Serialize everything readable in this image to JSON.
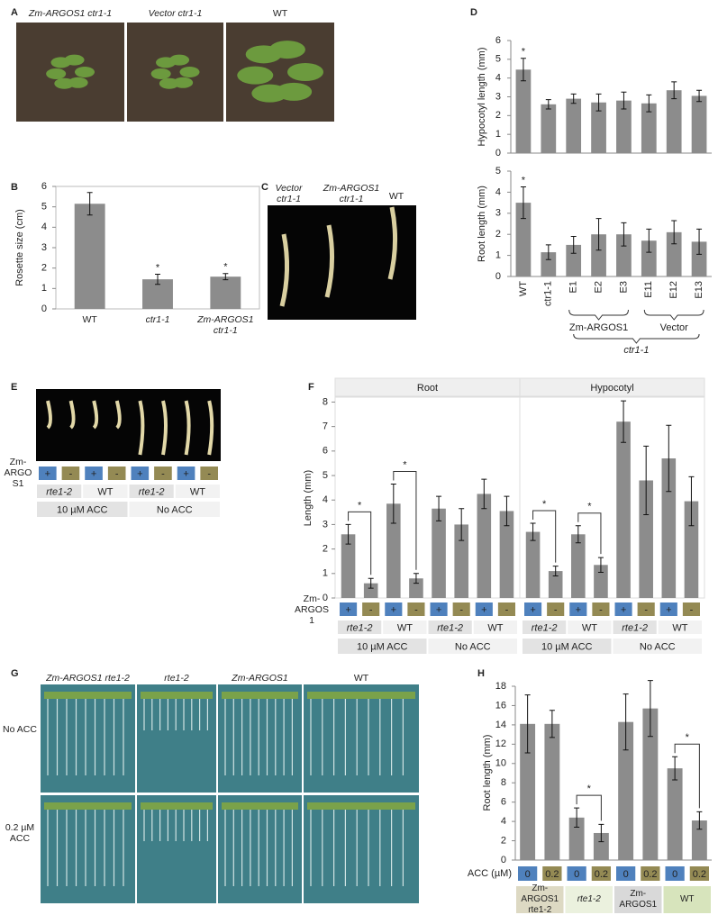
{
  "panels": {
    "letters": [
      "A",
      "B",
      "C",
      "D",
      "E",
      "F",
      "G",
      "H"
    ],
    "A": {
      "labels": [
        "Zm-ARGOS1 ctr1-1",
        "Vector ctr1-1",
        "WT"
      ]
    },
    "C": {
      "labels": [
        "Vector ctr1-1",
        "Zm-ARGOS1 ctr1-1",
        "WT"
      ]
    },
    "E": {
      "row_label": "Zm-ARGOS1",
      "argos": [
        "+",
        "-",
        "+",
        "-",
        "+",
        "-",
        "+",
        "-"
      ],
      "genotypes": [
        "rte1-2",
        "WT",
        "rte1-2",
        "WT"
      ],
      "treatments": [
        "10 µM ACC",
        "No ACC"
      ]
    },
    "G": {
      "columns": [
        "Zm-ARGOS1 rte1-2",
        "rte1-2",
        "Zm-ARGOS1",
        "WT"
      ],
      "rows": [
        "No ACC",
        "0.2 µM ACC"
      ]
    }
  },
  "chart_data": [
    {
      "type": "bar",
      "ylabel": "Rosette size (cm)",
      "categories": [
        "WT",
        "ctr1-1",
        "Zm-ARGOS1 ctr1-1"
      ],
      "values": [
        5.15,
        1.45,
        1.58
      ],
      "errors": [
        0.55,
        0.25,
        0.15
      ],
      "significance": [
        null,
        "*",
        "*"
      ],
      "ylim": [
        0,
        6
      ],
      "yticks": [
        0,
        1,
        2,
        3,
        4,
        5,
        6
      ],
      "color": "#8c8c8c",
      "grid": false
    },
    {
      "type": "bar",
      "ylabel": "Hypocotyl length (mm)",
      "values": [
        4.45,
        2.6,
        2.9,
        2.7,
        2.8,
        2.65,
        3.35,
        3.05
      ],
      "errors": [
        0.6,
        0.25,
        0.25,
        0.45,
        0.45,
        0.45,
        0.45,
        0.3
      ],
      "significance": [
        "*",
        null,
        null,
        null,
        null,
        null,
        null,
        null
      ],
      "ylim": [
        0,
        6
      ],
      "yticks": [
        0,
        1,
        2,
        3,
        4,
        5,
        6
      ],
      "color": "#8c8c8c",
      "grid": false
    },
    {
      "type": "bar",
      "ylabel": "Root length (mm)",
      "categories": [
        "WT",
        "ctr1-1",
        "E1",
        "E2",
        "E3",
        "E11",
        "E12",
        "E13"
      ],
      "values": [
        3.5,
        1.15,
        1.5,
        2.0,
        2.0,
        1.7,
        2.1,
        1.65
      ],
      "errors": [
        0.75,
        0.35,
        0.4,
        0.75,
        0.55,
        0.55,
        0.55,
        0.6
      ],
      "significance": [
        "*",
        null,
        null,
        null,
        null,
        null,
        null,
        null
      ],
      "groups": [
        "Zm-ARGOS1",
        "Vector"
      ],
      "group_label": "ctr1-1",
      "ylim": [
        0,
        5
      ],
      "yticks": [
        0,
        1,
        2,
        3,
        4,
        5
      ],
      "color": "#8c8c8c",
      "grid": false
    },
    {
      "type": "bar",
      "ylabel": "Length (mm)",
      "facets": [
        {
          "title": "Root",
          "values": [
            2.6,
            0.6,
            3.85,
            0.8,
            3.65,
            3.0,
            4.25,
            3.55
          ],
          "errors": [
            0.4,
            0.2,
            0.8,
            0.2,
            0.5,
            0.65,
            0.6,
            0.6
          ],
          "comparisons": [
            "*",
            "*"
          ]
        },
        {
          "title": "Hypocotyl",
          "values": [
            2.7,
            1.1,
            2.6,
            1.35,
            7.2,
            4.8,
            5.7,
            3.95
          ],
          "errors": [
            0.35,
            0.2,
            0.35,
            0.3,
            0.85,
            1.4,
            1.35,
            1.0
          ],
          "comparisons": [
            "*",
            "*"
          ]
        }
      ],
      "row_label": "Zm-ARGOS1",
      "argos": [
        "+",
        "-",
        "+",
        "-",
        "+",
        "-",
        "+",
        "-"
      ],
      "genotypes": [
        "rte1-2",
        "WT",
        "rte1-2",
        "WT"
      ],
      "treatments": [
        "10 µM ACC",
        "No ACC"
      ],
      "ylim": [
        0,
        8.2
      ],
      "yticks": [
        0,
        1,
        2,
        3,
        4,
        5,
        6,
        7,
        8
      ],
      "color": "#8c8c8c",
      "grid": false
    },
    {
      "type": "bar",
      "ylabel": "Root length (mm)",
      "values": [
        14.1,
        14.1,
        4.4,
        2.8,
        14.3,
        15.7,
        9.5,
        4.1
      ],
      "errors": [
        3.0,
        1.4,
        1.0,
        0.9,
        2.9,
        2.9,
        1.2,
        0.9
      ],
      "comparisons": [
        "*",
        "*"
      ],
      "row_label": "ACC (µM)",
      "acc": [
        "0",
        "0.2",
        "0",
        "0.2",
        "0",
        "0.2",
        "0",
        "0.2"
      ],
      "genotypes": [
        "Zm-ARGOS1 rte1-2",
        "rte1-2",
        "Zm-ARGOS1",
        "WT"
      ],
      "ylim": [
        0,
        18
      ],
      "yticks": [
        0,
        2,
        4,
        6,
        8,
        10,
        12,
        14,
        16,
        18
      ],
      "color": "#8c8c8c",
      "grid": false
    }
  ]
}
